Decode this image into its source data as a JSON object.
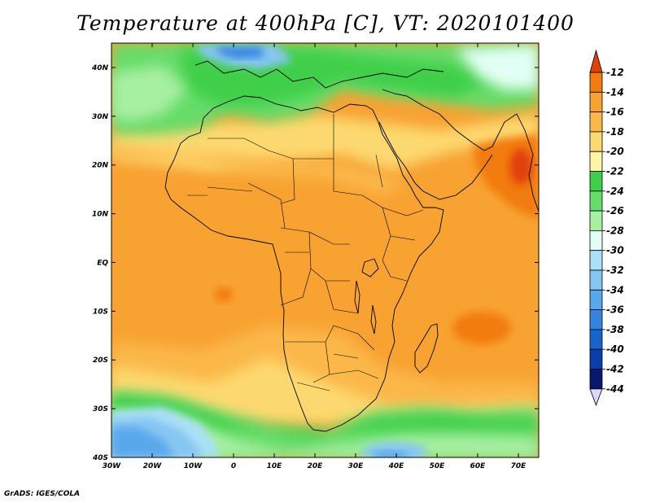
{
  "title": "Temperature at 400hPa [C], VT: 2020101400",
  "credit": "GrADS: IGES/COLA",
  "map": {
    "lon_range": [
      -30,
      75
    ],
    "lat_range": [
      -40,
      45
    ],
    "lat_ticks": [
      {
        "value": 40,
        "label": "40N"
      },
      {
        "value": 30,
        "label": "30N"
      },
      {
        "value": 20,
        "label": "20N"
      },
      {
        "value": 10,
        "label": "10N"
      },
      {
        "value": 0,
        "label": "EQ"
      },
      {
        "value": -10,
        "label": "10S"
      },
      {
        "value": -20,
        "label": "20S"
      },
      {
        "value": -30,
        "label": "30S"
      },
      {
        "value": -40,
        "label": "40S"
      }
    ],
    "lon_ticks": [
      {
        "value": -30,
        "label": "30W"
      },
      {
        "value": -20,
        "label": "20W"
      },
      {
        "value": -10,
        "label": "10W"
      },
      {
        "value": 0,
        "label": "0"
      },
      {
        "value": 10,
        "label": "10E"
      },
      {
        "value": 20,
        "label": "20E"
      },
      {
        "value": 30,
        "label": "30E"
      },
      {
        "value": 40,
        "label": "40E"
      },
      {
        "value": 50,
        "label": "50E"
      },
      {
        "value": 60,
        "label": "60E"
      },
      {
        "value": 70,
        "label": "70E"
      }
    ]
  },
  "colorbar": {
    "labels": [
      "-12",
      "-14",
      "-16",
      "-18",
      "-20",
      "-22",
      "-24",
      "-26",
      "-28",
      "-30",
      "-32",
      "-34",
      "-36",
      "-38",
      "-40",
      "-42",
      "-44"
    ],
    "colors": [
      "#e1400a",
      "#f27c0f",
      "#f8a232",
      "#fbb84a",
      "#fcd970",
      "#fdf5a8",
      "#3fcf4a",
      "#66dc6b",
      "#a7f0a2",
      "#e2fff5",
      "#aae0f8",
      "#86c6f2",
      "#5aa8ec",
      "#3584e0",
      "#1466cc",
      "#0a3ea8",
      "#08186a"
    ],
    "top_arrow_color": "#e1400a",
    "bottom_arrow_color": "#ddd8fa"
  }
}
